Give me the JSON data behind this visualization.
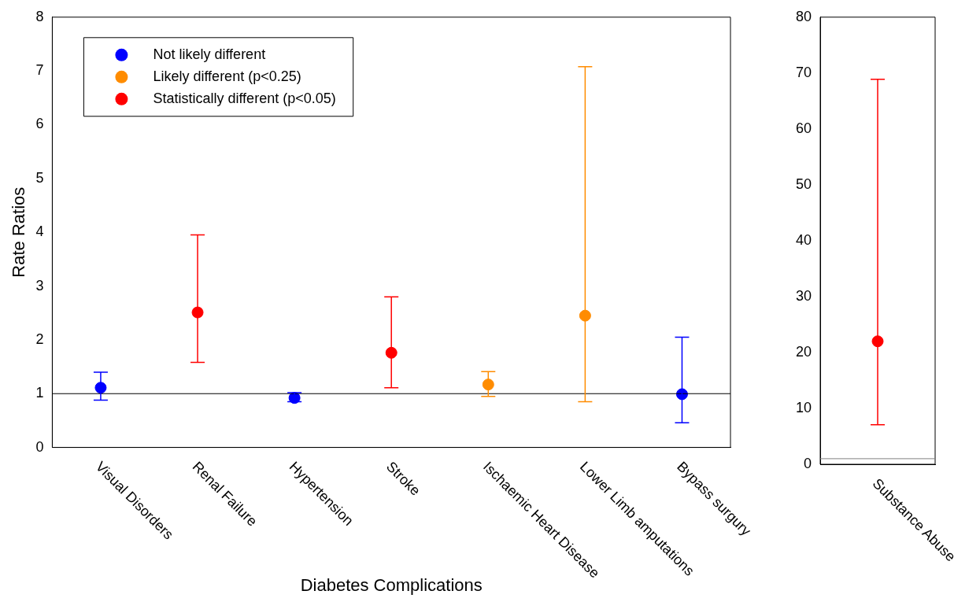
{
  "chart_data": [
    {
      "type": "scatter",
      "xlabel": "Diabetes Complications",
      "ylabel": "Rate Ratios",
      "categories": [
        "Visual Disorders",
        "Renal Failure",
        "Hypertension",
        "Stroke",
        "Ischaemic Heart Disease",
        "Lower Limb amputations",
        "Bypass surgury"
      ],
      "series": [
        {
          "name": "Not likely different",
          "color": "#0000ff",
          "values": [
            1.11,
            null,
            0.92,
            null,
            null,
            null,
            0.99
          ],
          "errors": [
            [
              0.88,
              1.4
            ],
            null,
            [
              0.85,
              1.02
            ],
            null,
            null,
            null,
            [
              0.46,
              2.05
            ]
          ]
        },
        {
          "name": "Likely different (p<0.25)",
          "color": "#ff8c00",
          "values": [
            null,
            null,
            null,
            null,
            1.17,
            2.45,
            null
          ],
          "errors": [
            null,
            null,
            null,
            null,
            [
              0.95,
              1.41
            ],
            [
              0.85,
              7.08
            ],
            null
          ]
        },
        {
          "name": "Statistically different (p<0.05)",
          "color": "#ff0000",
          "values": [
            null,
            2.51,
            null,
            1.76,
            null,
            null,
            null
          ],
          "errors": [
            null,
            [
              1.58,
              3.95
            ],
            null,
            [
              1.11,
              2.8
            ],
            null,
            null,
            null
          ]
        }
      ],
      "ylim": [
        0,
        8
      ],
      "yticks": [
        0,
        1,
        2,
        3,
        4,
        5,
        6,
        7,
        8
      ],
      "ref_lines": [
        {
          "axis": "y",
          "value": 1,
          "color": "#000000"
        }
      ],
      "legend": "top left",
      "marker": "circle",
      "grid": false
    },
    {
      "type": "scatter",
      "categories": [
        "Substance Abuse"
      ],
      "series": [
        {
          "color": "#ff0000",
          "values": [
            22.0
          ],
          "errors": [
            [
              7.06,
              68.9
            ]
          ]
        }
      ],
      "ylim": [
        0,
        80
      ],
      "yticks": [
        0,
        10,
        20,
        30,
        40,
        50,
        60,
        70,
        80
      ],
      "ref_lines": [
        {
          "axis": "y",
          "value": 1,
          "color": "#808080"
        }
      ],
      "legend": false,
      "marker": "circle",
      "grid": false
    }
  ]
}
